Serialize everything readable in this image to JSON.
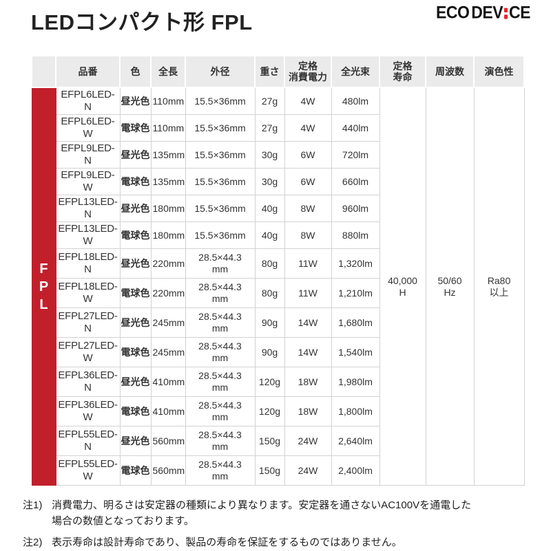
{
  "page": {
    "title": "LEDコンパクト形 FPL",
    "logo": {
      "left": "ECO DEV",
      "right": "CE"
    }
  },
  "colors": {
    "red_bar": "#c1202b",
    "daylight_bg": "#c6e3f4",
    "bulb_bg": "#f9dd98",
    "header_bg": "#ebebeb",
    "logo_accent": "#e8242c"
  },
  "table": {
    "row_group_label": "FPL",
    "headers": [
      "品番",
      "色",
      "全長",
      "外径",
      "重さ",
      "定格\n消費電力",
      "全光束",
      "定格\n寿命",
      "周波数",
      "演色性"
    ],
    "rows": [
      {
        "model": "EFPL6LED-N",
        "color": "昼光色",
        "color_type": "daylight",
        "length": "110mm",
        "diameter": "15.5×36mm",
        "weight": "27g",
        "power": "4W",
        "flux": "480lm"
      },
      {
        "model": "EFPL6LED-W",
        "color": "電球色",
        "color_type": "bulb",
        "length": "110mm",
        "diameter": "15.5×36mm",
        "weight": "27g",
        "power": "4W",
        "flux": "440lm"
      },
      {
        "model": "EFPL9LED-N",
        "color": "昼光色",
        "color_type": "daylight",
        "length": "135mm",
        "diameter": "15.5×36mm",
        "weight": "30g",
        "power": "6W",
        "flux": "720lm"
      },
      {
        "model": "EFPL9LED-W",
        "color": "電球色",
        "color_type": "bulb",
        "length": "135mm",
        "diameter": "15.5×36mm",
        "weight": "30g",
        "power": "6W",
        "flux": "660lm"
      },
      {
        "model": "EFPL13LED-N",
        "color": "昼光色",
        "color_type": "daylight",
        "length": "180mm",
        "diameter": "15.5×36mm",
        "weight": "40g",
        "power": "8W",
        "flux": "960lm"
      },
      {
        "model": "EFPL13LED-W",
        "color": "電球色",
        "color_type": "bulb",
        "length": "180mm",
        "diameter": "15.5×36mm",
        "weight": "40g",
        "power": "8W",
        "flux": "880lm"
      },
      {
        "model": "EFPL18LED-N",
        "color": "昼光色",
        "color_type": "daylight",
        "length": "220mm",
        "diameter": "28.5×44.3\nmm",
        "weight": "80g",
        "power": "11W",
        "flux": "1,320lm"
      },
      {
        "model": "EFPL18LED-W",
        "color": "電球色",
        "color_type": "bulb",
        "length": "220mm",
        "diameter": "28.5×44.3\nmm",
        "weight": "80g",
        "power": "11W",
        "flux": "1,210lm"
      },
      {
        "model": "EFPL27LED-N",
        "color": "昼光色",
        "color_type": "daylight",
        "length": "245mm",
        "diameter": "28.5×44.3\nmm",
        "weight": "90g",
        "power": "14W",
        "flux": "1,680lm"
      },
      {
        "model": "EFPL27LED-W",
        "color": "電球色",
        "color_type": "bulb",
        "length": "245mm",
        "diameter": "28.5×44.3\nmm",
        "weight": "90g",
        "power": "14W",
        "flux": "1,540lm"
      },
      {
        "model": "EFPL36LED-N",
        "color": "昼光色",
        "color_type": "daylight",
        "length": "410mm",
        "diameter": "28.5×44.3\nmm",
        "weight": "120g",
        "power": "18W",
        "flux": "1,980lm"
      },
      {
        "model": "EFPL36LED-W",
        "color": "電球色",
        "color_type": "bulb",
        "length": "410mm",
        "diameter": "28.5×44.3\nmm",
        "weight": "120g",
        "power": "18W",
        "flux": "1,800lm"
      },
      {
        "model": "EFPL55LED-N",
        "color": "昼光色",
        "color_type": "daylight",
        "length": "560mm",
        "diameter": "28.5×44.3\nmm",
        "weight": "150g",
        "power": "24W",
        "flux": "2,640lm"
      },
      {
        "model": "EFPL55LED-W",
        "color": "電球色",
        "color_type": "bulb",
        "length": "560mm",
        "diameter": "28.5×44.3\nmm",
        "weight": "150g",
        "power": "24W",
        "flux": "2,400lm"
      }
    ],
    "merged": {
      "life": "40,000\nH",
      "frequency": "50/60\nHz",
      "cri": "Ra80\n以上"
    }
  },
  "notes": [
    {
      "label": "注1)",
      "text": "消費電力、明るさは安定器の種類により異なります。安定器を通さないAC100Vを通電した\n場合の数値となっております。"
    },
    {
      "label": "注2)",
      "text": "表示寿命は設計寿命であり、製品の寿命を保証をするものではありません。"
    }
  ]
}
